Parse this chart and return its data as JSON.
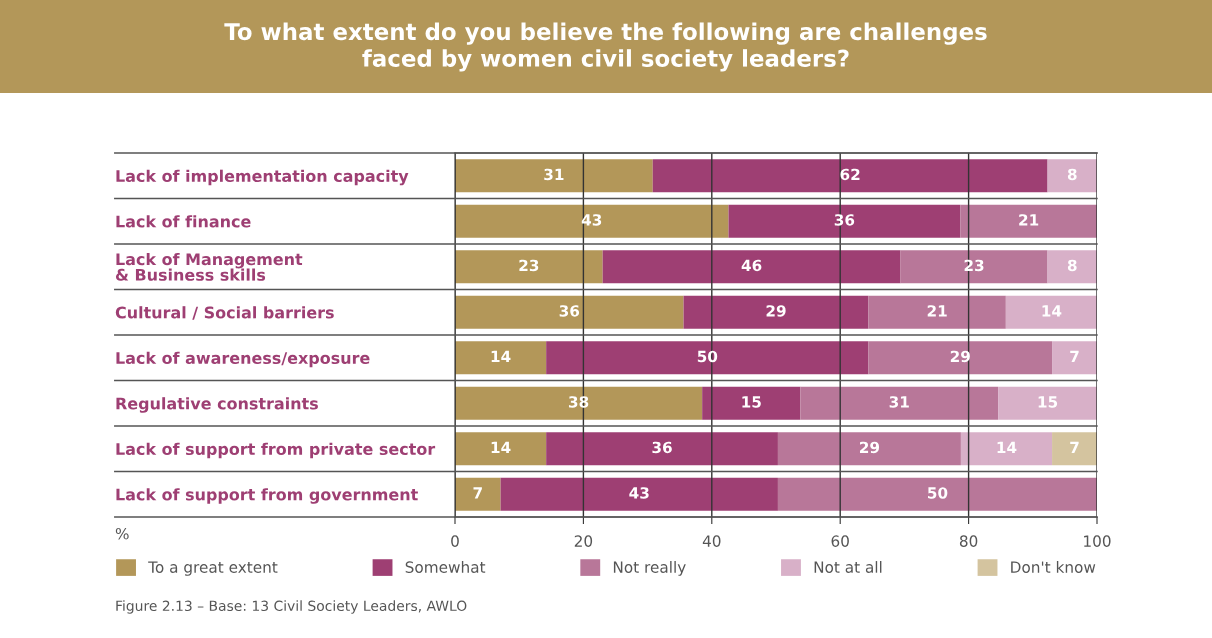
{
  "chart_data": {
    "type": "bar",
    "orientation": "horizontal",
    "stacked": true,
    "title": "To what extent do you believe the following are challenges\nfaced by women civil society leaders?",
    "xlabel": "%",
    "categories": [
      "Lack of implementation capacity",
      "Lack of finance",
      "Lack of Management\n& Business skills",
      "Cultural / Social barriers",
      "Lack of awareness/exposure",
      "Regulative constraints",
      "Lack of support from private sector",
      "Lack of support from government"
    ],
    "series": [
      {
        "name": "To a great extent",
        "color": "#b39759",
        "values": [
          30.8,
          42.6,
          23.0,
          35.6,
          14.2,
          38.5,
          14.2,
          7.1
        ],
        "value_labels": [
          "31",
          "43",
          "23",
          "36",
          "14",
          "38",
          "14",
          "7"
        ]
      },
      {
        "name": "Somewhat",
        "color": "#9e3f73",
        "values": [
          61.5,
          36.1,
          46.4,
          28.8,
          50.2,
          15.3,
          36.1,
          43.2
        ],
        "value_labels": [
          "62",
          "36",
          "46",
          "29",
          "50",
          "15",
          "36",
          "43"
        ]
      },
      {
        "name": "Not really",
        "color": "#b87799",
        "values": [
          null,
          21.3,
          22.9,
          21.4,
          28.6,
          30.8,
          28.5,
          49.7
        ],
        "value_labels": [
          null,
          "21",
          "23",
          "21",
          "29",
          "31",
          "29",
          "50"
        ]
      },
      {
        "name": "Not at all",
        "color": "#d8b0c8",
        "values": [
          7.7,
          null,
          7.7,
          14.2,
          7.0,
          15.4,
          14.2,
          null
        ],
        "value_labels": [
          "8",
          null,
          "8",
          "14",
          "7",
          "15",
          "14",
          null
        ]
      },
      {
        "name": "Don't know",
        "color": "#d4c49f",
        "values": [
          null,
          null,
          null,
          null,
          null,
          null,
          7.0,
          null
        ],
        "value_labels": [
          null,
          null,
          null,
          null,
          null,
          null,
          "7",
          null
        ]
      }
    ],
    "xlim": [
      0,
      100
    ],
    "xticks": [
      0,
      20,
      40,
      60,
      80,
      100
    ],
    "grid": true,
    "legend": "bottom",
    "annotations": [
      "Figure 2.13 – Base: 13 Civil Society Leaders, AWLO"
    ]
  }
}
